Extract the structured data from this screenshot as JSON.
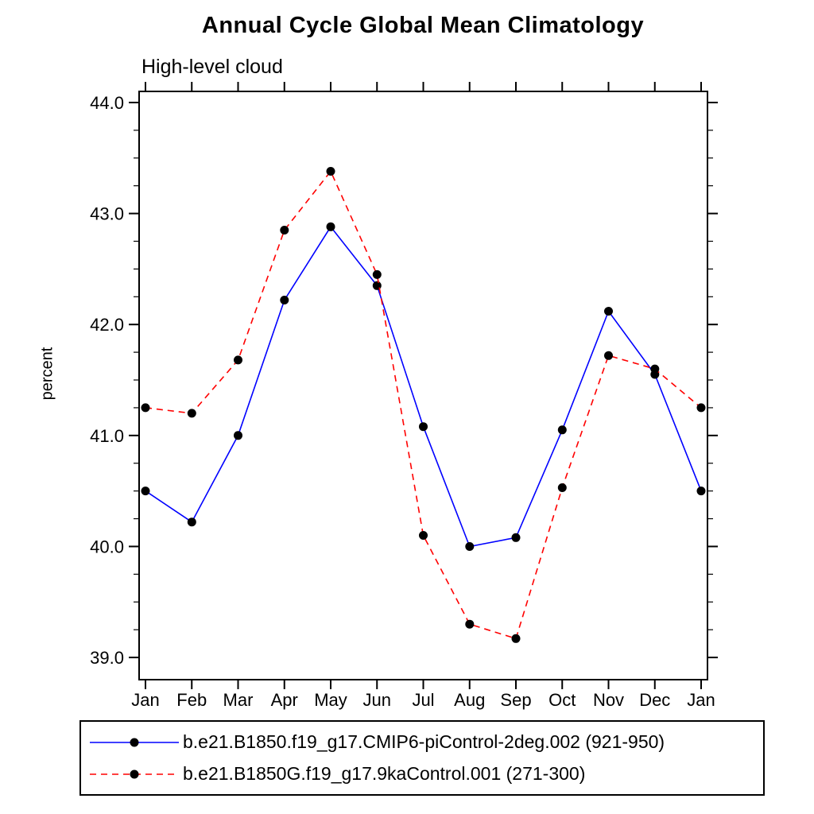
{
  "title": "Annual Cycle Global Mean Climatology",
  "subtitle": "High-level cloud",
  "chart_data": {
    "type": "line",
    "categories": [
      "Jan",
      "Feb",
      "Mar",
      "Apr",
      "May",
      "Jun",
      "Jul",
      "Aug",
      "Sep",
      "Oct",
      "Nov",
      "Dec",
      "Jan"
    ],
    "xlabel": "",
    "ylabel": "percent",
    "ylim": [
      38.8,
      44.1
    ],
    "yticks": [
      39.0,
      40.0,
      41.0,
      42.0,
      43.0,
      44.0
    ],
    "ytick_labels": [
      "39.0",
      "40.0",
      "41.0",
      "42.0",
      "43.0",
      "44.0"
    ],
    "minor_tick_interval": 0.25,
    "grid": false,
    "legend_position": "bottom",
    "axis_color": "#000000",
    "marker_shape": "filled-circle",
    "series": [
      {
        "name": "b.e21.B1850.f19_g17.CMIP6-piControl-2deg.002 (921-950)",
        "color": "#0000ff",
        "line_style": "solid",
        "marker_color": "#000000",
        "values": [
          40.5,
          40.22,
          41.0,
          42.22,
          42.88,
          42.35,
          41.08,
          40.0,
          40.08,
          41.05,
          42.12,
          41.55,
          40.5
        ]
      },
      {
        "name": "b.e21.B1850G.f19_g17.9kaControl.001 (271-300)",
        "color": "#ff0000",
        "line_style": "dashed",
        "marker_color": "#000000",
        "values": [
          41.25,
          41.2,
          41.68,
          42.85,
          43.38,
          42.45,
          40.1,
          39.3,
          39.17,
          40.53,
          41.72,
          41.6,
          41.25
        ]
      }
    ]
  }
}
